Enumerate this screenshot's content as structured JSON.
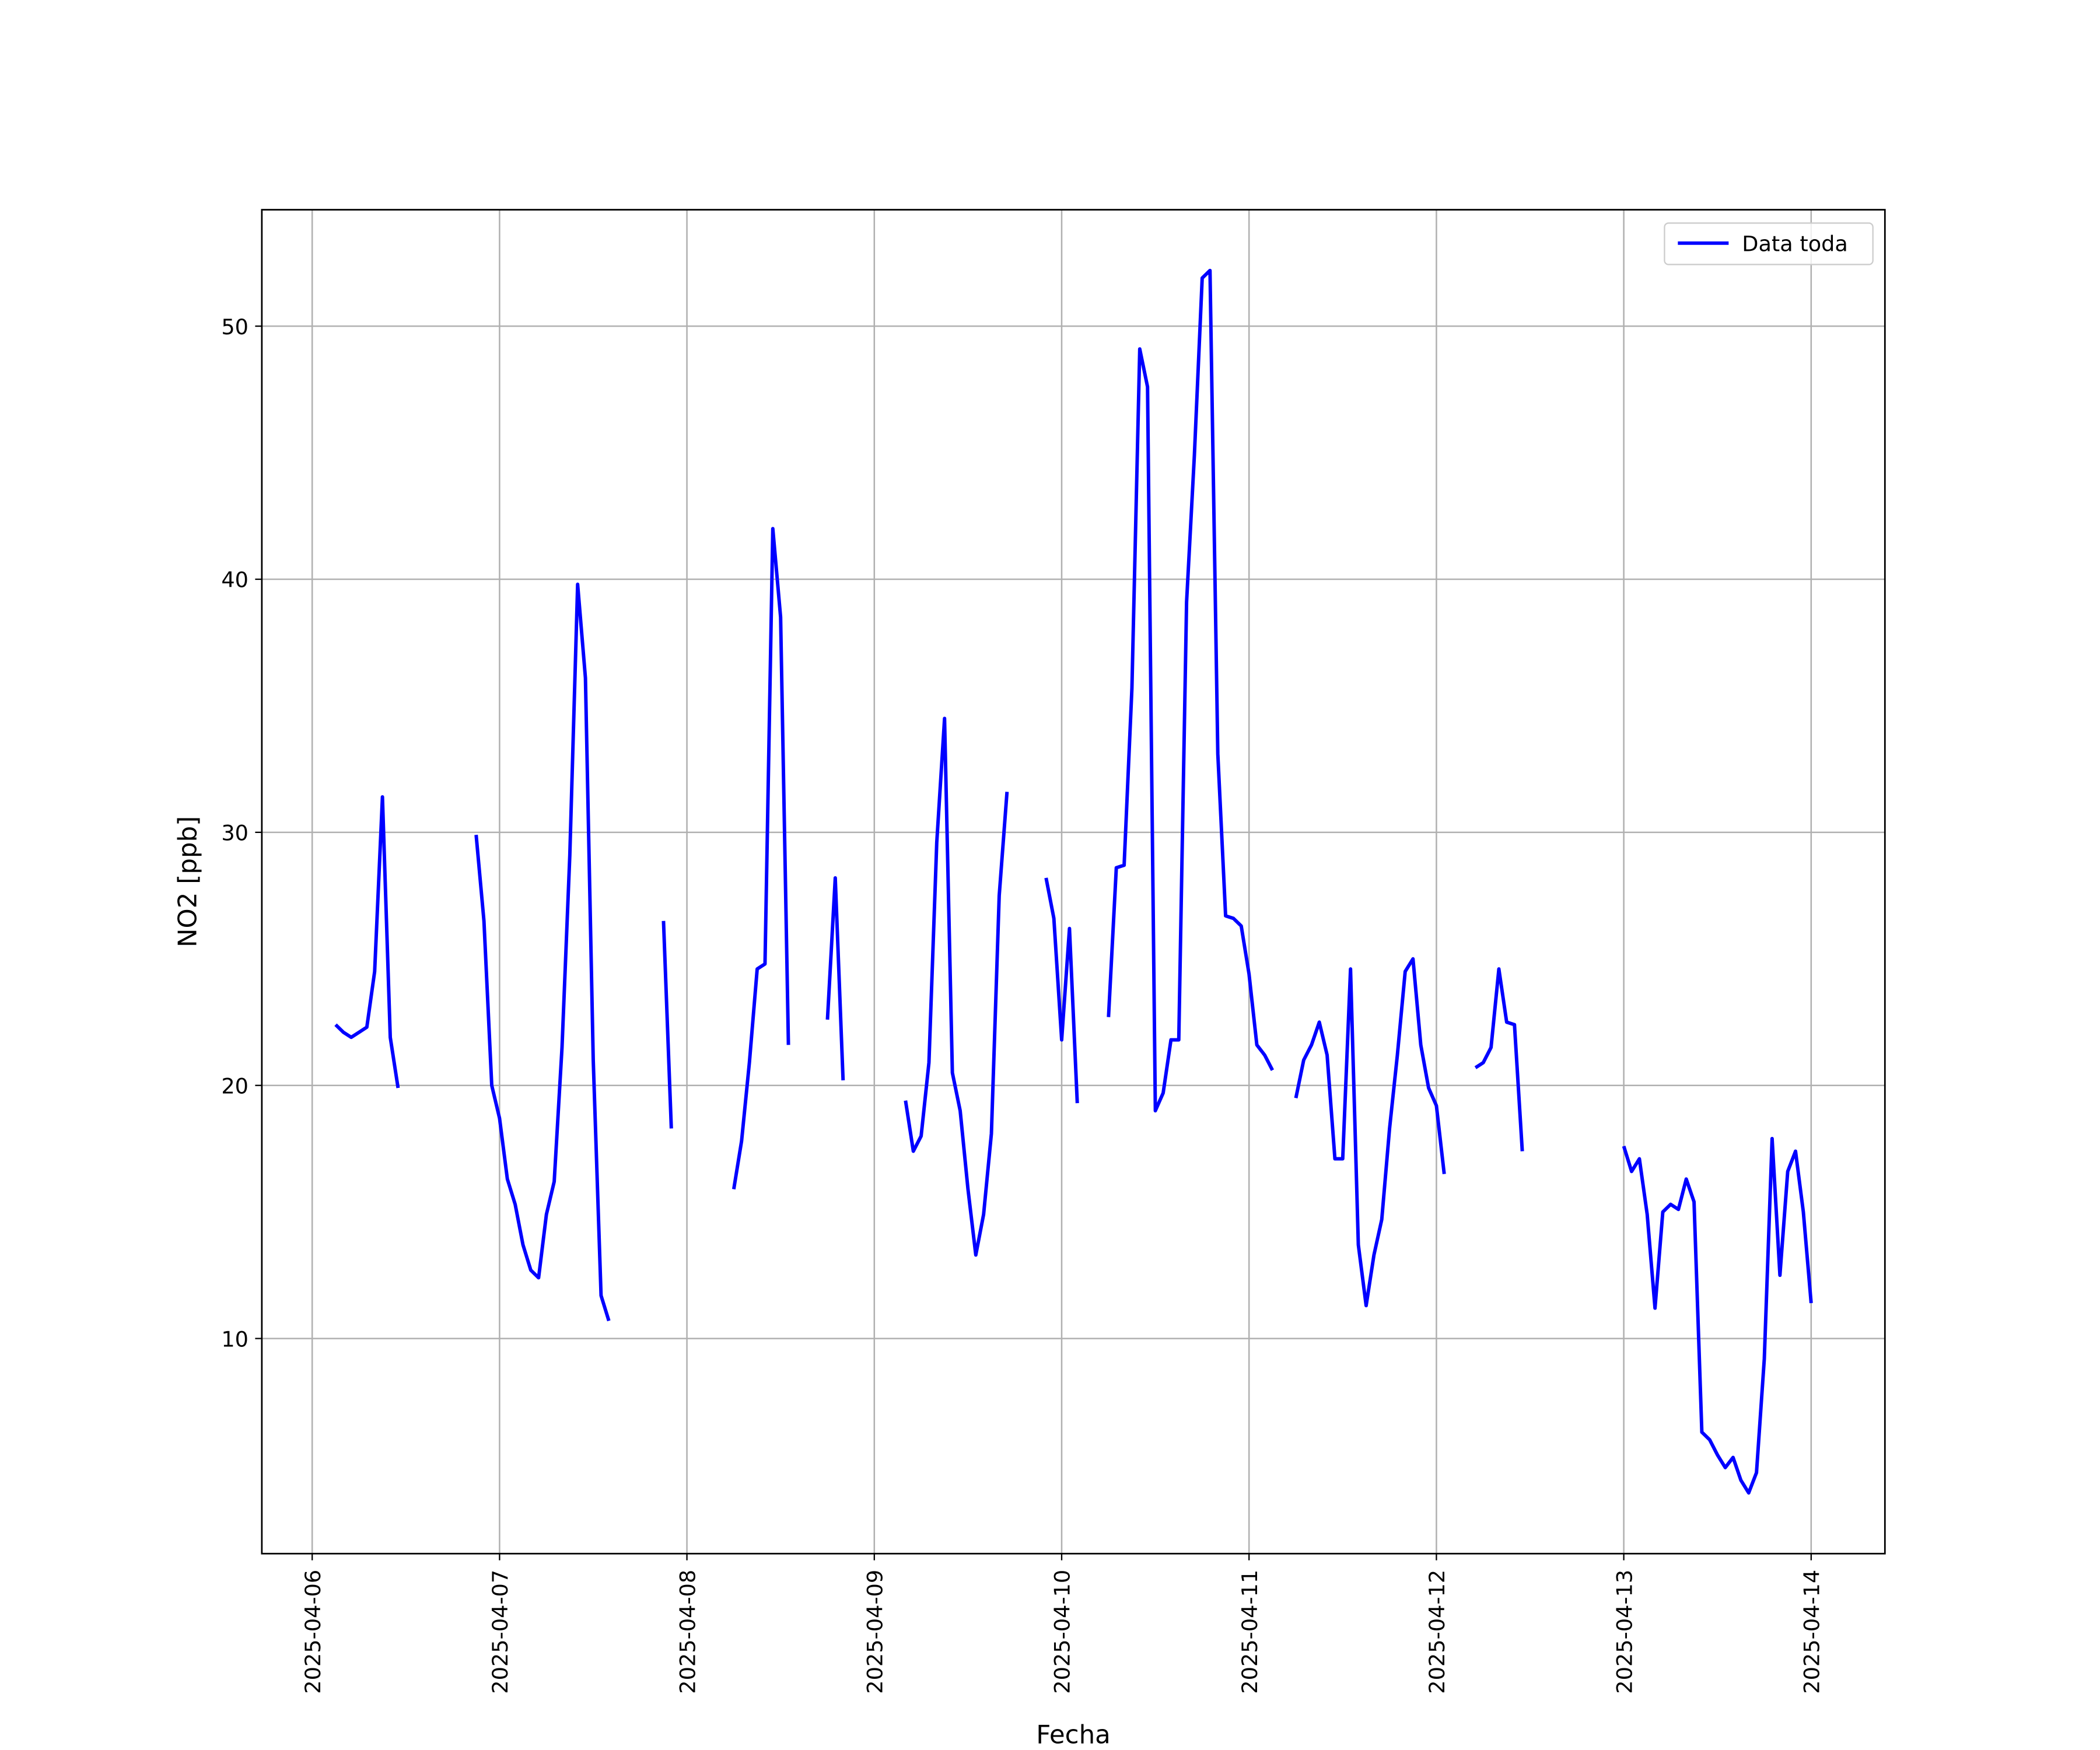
{
  "chart_data": {
    "type": "line",
    "xlabel": "Fecha",
    "ylabel": "NO2 [ppb]",
    "grid": true,
    "legend": "upper right",
    "xlim": [
      "2025-04-05 17:33",
      "2025-04-14 09:27"
    ],
    "xticks": [
      "2025-04-06",
      "2025-04-07",
      "2025-04-08",
      "2025-04-09",
      "2025-04-10",
      "2025-04-11",
      "2025-04-12",
      "2025-04-13",
      "2025-04-14"
    ],
    "ylim": [
      1.5,
      54.6
    ],
    "yticks": [
      10,
      20,
      30,
      40,
      50
    ],
    "x": [
      "2025-04-06 03:00",
      "2025-04-06 04:00",
      "2025-04-06 05:00",
      "2025-04-06 06:00",
      "2025-04-06 07:00",
      "2025-04-06 08:00",
      "2025-04-06 09:00",
      "2025-04-06 10:00",
      "2025-04-06 11:00",
      "2025-04-06 12:00",
      "2025-04-06 21:00",
      "2025-04-06 22:00",
      "2025-04-06 23:00",
      "2025-04-07 00:00",
      "2025-04-07 01:00",
      "2025-04-07 02:00",
      "2025-04-07 03:00",
      "2025-04-07 04:00",
      "2025-04-07 05:00",
      "2025-04-07 06:00",
      "2025-04-07 07:00",
      "2025-04-07 08:00",
      "2025-04-07 09:00",
      "2025-04-07 10:00",
      "2025-04-07 11:00",
      "2025-04-07 12:00",
      "2025-04-07 13:00",
      "2025-04-07 14:00",
      "2025-04-07 15:00",
      "2025-04-07 21:00",
      "2025-04-07 22:00",
      "2025-04-07 23:00",
      "2025-04-08 06:00",
      "2025-04-08 07:00",
      "2025-04-08 08:00",
      "2025-04-08 09:00",
      "2025-04-08 10:00",
      "2025-04-08 11:00",
      "2025-04-08 12:00",
      "2025-04-08 13:00",
      "2025-04-08 14:00",
      "2025-04-08 18:00",
      "2025-04-08 19:00",
      "2025-04-08 20:00",
      "2025-04-08 21:00",
      "2025-04-09 04:00",
      "2025-04-09 05:00",
      "2025-04-09 06:00",
      "2025-04-09 07:00",
      "2025-04-09 08:00",
      "2025-04-09 09:00",
      "2025-04-09 10:00",
      "2025-04-09 11:00",
      "2025-04-09 12:00",
      "2025-04-09 13:00",
      "2025-04-09 14:00",
      "2025-04-09 15:00",
      "2025-04-09 16:00",
      "2025-04-09 17:00",
      "2025-04-09 18:00",
      "2025-04-09 22:00",
      "2025-04-09 23:00",
      "2025-04-10 00:00",
      "2025-04-10 01:00",
      "2025-04-10 02:00",
      "2025-04-10 03:00",
      "2025-04-10 06:00",
      "2025-04-10 07:00",
      "2025-04-10 08:00",
      "2025-04-10 09:00",
      "2025-04-10 10:00",
      "2025-04-10 11:00",
      "2025-04-10 12:00",
      "2025-04-10 13:00",
      "2025-04-10 14:00",
      "2025-04-10 15:00",
      "2025-04-10 16:00",
      "2025-04-10 17:00",
      "2025-04-10 18:00",
      "2025-04-10 19:00",
      "2025-04-10 20:00",
      "2025-04-10 21:00",
      "2025-04-10 22:00",
      "2025-04-10 23:00",
      "2025-04-11 00:00",
      "2025-04-11 01:00",
      "2025-04-11 02:00",
      "2025-04-11 03:00",
      "2025-04-11 04:00",
      "2025-04-11 06:00",
      "2025-04-11 07:00",
      "2025-04-11 08:00",
      "2025-04-11 09:00",
      "2025-04-11 10:00",
      "2025-04-11 11:00",
      "2025-04-11 12:00",
      "2025-04-11 13:00",
      "2025-04-11 14:00",
      "2025-04-11 15:00",
      "2025-04-11 16:00",
      "2025-04-11 17:00",
      "2025-04-11 18:00",
      "2025-04-11 19:00",
      "2025-04-11 20:00",
      "2025-04-11 21:00",
      "2025-04-11 22:00",
      "2025-04-11 23:00",
      "2025-04-12 00:00",
      "2025-04-12 01:00",
      "2025-04-12 02:00",
      "2025-04-12 05:00",
      "2025-04-12 06:00",
      "2025-04-12 07:00",
      "2025-04-12 08:00",
      "2025-04-12 09:00",
      "2025-04-12 10:00",
      "2025-04-12 11:00",
      "2025-04-12 12:00",
      "2025-04-13 00:00",
      "2025-04-13 01:00",
      "2025-04-13 02:00",
      "2025-04-13 03:00",
      "2025-04-13 04:00",
      "2025-04-13 05:00",
      "2025-04-13 06:00",
      "2025-04-13 07:00",
      "2025-04-13 08:00",
      "2025-04-13 09:00",
      "2025-04-13 10:00",
      "2025-04-13 11:00",
      "2025-04-13 12:00",
      "2025-04-13 13:00",
      "2025-04-13 14:00",
      "2025-04-13 15:00",
      "2025-04-13 16:00",
      "2025-04-13 17:00",
      "2025-04-13 18:00",
      "2025-04-13 19:00",
      "2025-04-13 20:00",
      "2025-04-13 21:00",
      "2025-04-13 22:00",
      "2025-04-13 23:00",
      "2025-04-14 00:00"
    ],
    "series": [
      {
        "name": "Data toda",
        "color": "#0000ff",
        "values": [
          22.4,
          22.1,
          21.9,
          22.1,
          22.3,
          24.5,
          31.4,
          21.9,
          19.9,
          null,
          29.9,
          26.5,
          20.0,
          18.7,
          16.3,
          15.3,
          13.7,
          12.7,
          12.4,
          14.9,
          16.2,
          21.5,
          29.1,
          39.8,
          36.1,
          21.0,
          11.7,
          10.7,
          null,
          26.5,
          18.3,
          null,
          15.9,
          17.8,
          20.9,
          24.6,
          24.8,
          42.0,
          38.5,
          21.6,
          null,
          22.6,
          28.2,
          20.2,
          null,
          19.4,
          17.4,
          18.0,
          20.9,
          29.6,
          34.5,
          20.5,
          19.0,
          15.9,
          13.3,
          14.9,
          18.1,
          27.5,
          31.6,
          null,
          28.2,
          26.6,
          21.8,
          26.2,
          19.3,
          null,
          22.7,
          28.6,
          28.7,
          35.7,
          49.1,
          47.6,
          19.0,
          19.7,
          21.8,
          21.8,
          39.1,
          44.9,
          51.9,
          52.2,
          33.1,
          26.7,
          26.6,
          26.3,
          24.4,
          21.6,
          21.2,
          20.6,
          null,
          19.5,
          21.0,
          21.6,
          22.5,
          21.2,
          17.1,
          17.1,
          24.6,
          13.7,
          11.3,
          13.3,
          14.7,
          18.3,
          21.2,
          24.5,
          25.0,
          21.6,
          19.9,
          19.2,
          16.5,
          null,
          20.7,
          20.9,
          21.5,
          24.6,
          22.5,
          22.4,
          17.4,
          null,
          17.6,
          16.6,
          17.1,
          14.9,
          11.2,
          15.0,
          15.3,
          15.1,
          16.3,
          15.4,
          6.3,
          6.0,
          5.4,
          4.9,
          5.3,
          4.4,
          3.9,
          4.7,
          9.2,
          17.9,
          12.5,
          16.6,
          17.4,
          15.0,
          11.4
        ]
      }
    ]
  }
}
